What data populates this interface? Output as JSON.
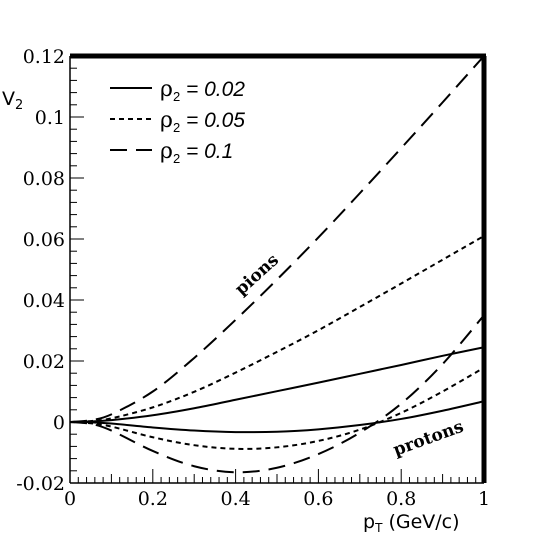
{
  "chart_data": {
    "type": "line",
    "xlabel": "p_T (GeV/c)",
    "xlabel_main": "p",
    "xlabel_sub": "T",
    "xlabel_rest": " (GeV/c)",
    "ylabel": "V2",
    "ylabel_main": "V",
    "ylabel_sub": "2",
    "xlim": [
      0,
      1
    ],
    "ylim": [
      -0.02,
      0.12
    ],
    "x_ticks": [
      0,
      0.2,
      0.4,
      0.6,
      0.8,
      1
    ],
    "x_tick_labels": [
      "0",
      "0.2",
      "0.4",
      "0.6",
      "0.8",
      "1"
    ],
    "y_ticks": [
      -0.02,
      0,
      0.02,
      0.04,
      0.06,
      0.08,
      0.1,
      0.12
    ],
    "y_tick_labels": [
      "-0.02",
      "0",
      "0.02",
      "0.04",
      "0.06",
      "0.08",
      "0.1",
      "0.12"
    ],
    "grid": false,
    "legend_position": "top-left",
    "legend": [
      {
        "symbol": "ρ",
        "sub": "2",
        "text": " = 0.02",
        "style": "solid"
      },
      {
        "symbol": "ρ",
        "sub": "2",
        "text": " = 0.05",
        "style": "dotted"
      },
      {
        "symbol": "ρ",
        "sub": "2",
        "text": " = 0.1",
        "style": "dashed"
      }
    ],
    "annotations": [
      {
        "text": "pions",
        "x": 0.46,
        "y": 0.047,
        "angle": -42
      },
      {
        "text": "protons",
        "x": 0.87,
        "y": -0.007,
        "angle": -20
      }
    ],
    "series": [
      {
        "group": "pions",
        "legend_index": 0,
        "style": "solid",
        "x": [
          0,
          0.05,
          0.1,
          0.2,
          0.3,
          0.4,
          0.5,
          0.6,
          0.7,
          0.8,
          0.9,
          1.0
        ],
        "y": [
          0,
          0.0002,
          0.0006,
          0.0022,
          0.0045,
          0.0073,
          0.0101,
          0.0129,
          0.0158,
          0.0187,
          0.0217,
          0.0245
        ]
      },
      {
        "group": "pions",
        "legend_index": 1,
        "style": "dotted",
        "x": [
          0,
          0.05,
          0.1,
          0.2,
          0.3,
          0.4,
          0.5,
          0.6,
          0.7,
          0.8,
          0.9,
          1.0
        ],
        "y": [
          0,
          0.0003,
          0.0012,
          0.0048,
          0.0099,
          0.0162,
          0.023,
          0.0301,
          0.0377,
          0.0454,
          0.0532,
          0.061
        ]
      },
      {
        "group": "pions",
        "legend_index": 2,
        "style": "dashed",
        "x": [
          0,
          0.05,
          0.1,
          0.2,
          0.3,
          0.4,
          0.5,
          0.6,
          0.7,
          0.8,
          0.9,
          1.0
        ],
        "y": [
          0,
          0.0006,
          0.0025,
          0.01,
          0.021,
          0.0335,
          0.0467,
          0.0605,
          0.075,
          0.0898,
          0.1048,
          0.12
        ]
      },
      {
        "group": "protons",
        "legend_index": 0,
        "style": "solid",
        "x": [
          0,
          0.05,
          0.1,
          0.2,
          0.3,
          0.4,
          0.5,
          0.6,
          0.7,
          0.8,
          0.9,
          1.0
        ],
        "y": [
          0,
          -0.0001,
          -0.0005,
          -0.0018,
          -0.0028,
          -0.0033,
          -0.0032,
          -0.0024,
          -0.001,
          0.001,
          0.0037,
          0.0068
        ]
      },
      {
        "group": "protons",
        "legend_index": 1,
        "style": "dotted",
        "x": [
          0,
          0.05,
          0.1,
          0.2,
          0.3,
          0.4,
          0.5,
          0.6,
          0.7,
          0.8,
          0.9,
          1.0
        ],
        "y": [
          0,
          -0.0004,
          -0.0015,
          -0.005,
          -0.0076,
          -0.0088,
          -0.0083,
          -0.0062,
          -0.0025,
          0.003,
          0.01,
          0.0178
        ]
      },
      {
        "group": "protons",
        "legend_index": 2,
        "style": "dashed",
        "x": [
          0,
          0.05,
          0.1,
          0.2,
          0.3,
          0.4,
          0.5,
          0.6,
          0.7,
          0.8,
          0.9,
          1.0
        ],
        "y": [
          0,
          -0.0006,
          -0.0028,
          -0.0095,
          -0.0145,
          -0.0165,
          -0.015,
          -0.0105,
          -0.0035,
          0.006,
          0.019,
          0.035
        ]
      }
    ]
  }
}
